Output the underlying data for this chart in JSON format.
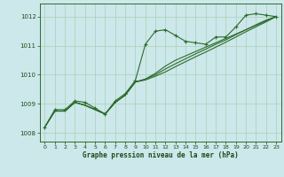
{
  "title": "Graphe pression niveau de la mer (hPa)",
  "xlabel": "Graphe pression niveau de la mer (hPa)",
  "x_hours": [
    0,
    1,
    2,
    3,
    4,
    5,
    6,
    7,
    8,
    9,
    10,
    11,
    12,
    13,
    14,
    15,
    16,
    17,
    18,
    19,
    20,
    21,
    22,
    23
  ],
  "line1_y": [
    1008.2,
    1008.8,
    1008.8,
    1009.1,
    1009.05,
    1008.85,
    1008.65,
    1009.1,
    1009.35,
    1009.8,
    1011.05,
    1011.5,
    1011.55,
    1011.35,
    1011.15,
    1011.1,
    1011.05,
    1011.3,
    1011.3,
    1011.65,
    1012.05,
    1012.1,
    1012.05,
    1012.0
  ],
  "line2_y": [
    1008.2,
    1008.75,
    1008.75,
    1009.05,
    1008.95,
    1008.8,
    1008.65,
    1009.05,
    1009.3,
    1009.75,
    1009.85,
    1010.05,
    1010.3,
    1010.5,
    1010.65,
    1010.8,
    1010.95,
    1011.1,
    1011.25,
    1011.4,
    1011.55,
    1011.7,
    1011.85,
    1012.0
  ],
  "line3_y": [
    1008.2,
    1008.75,
    1008.75,
    1009.05,
    1008.95,
    1008.8,
    1008.65,
    1009.05,
    1009.3,
    1009.75,
    1009.85,
    1010.0,
    1010.2,
    1010.38,
    1010.55,
    1010.72,
    1010.88,
    1011.05,
    1011.2,
    1011.38,
    1011.55,
    1011.72,
    1011.88,
    1012.0
  ],
  "line4_y": [
    1008.2,
    1008.75,
    1008.75,
    1009.05,
    1008.95,
    1008.8,
    1008.65,
    1009.05,
    1009.3,
    1009.75,
    1009.82,
    1009.95,
    1010.1,
    1010.28,
    1010.45,
    1010.62,
    1010.78,
    1010.95,
    1011.12,
    1011.3,
    1011.48,
    1011.65,
    1011.82,
    1012.0
  ],
  "ylim": [
    1007.7,
    1012.45
  ],
  "yticks": [
    1008,
    1009,
    1010,
    1011,
    1012
  ],
  "xlim": [
    -0.5,
    23.5
  ],
  "bg_color": "#cce8ea",
  "line_color": "#2d6a2d",
  "grid_color": "#aacfb5",
  "label_color": "#1a4a1a",
  "marker": "+",
  "marker_size": 3,
  "line_width": 0.8
}
